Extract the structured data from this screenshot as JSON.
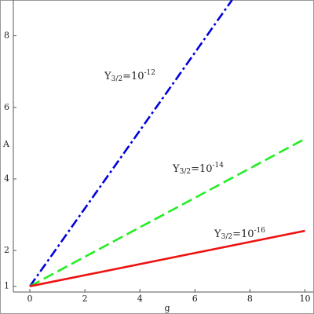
{
  "chart_data": {
    "type": "line",
    "xlabel": "g",
    "ylabel": "A",
    "xlim": [
      -0.6,
      10.3
    ],
    "ylim": [
      0.84,
      9
    ],
    "xticks": [
      0,
      2,
      4,
      6,
      8,
      10
    ],
    "yticks": [
      1,
      2,
      4,
      6,
      8
    ],
    "series": [
      {
        "color": "#0000dd",
        "style": "dashdot",
        "x": [
          0,
          7.35
        ],
        "values": [
          1,
          9
        ]
      },
      {
        "color": "#22ee22",
        "style": "dashed",
        "x": [
          0,
          10
        ],
        "values": [
          1,
          5.12
        ]
      },
      {
        "color": "#ee1111",
        "style": "solid",
        "x": [
          0,
          10
        ],
        "values": [
          1,
          2.55
        ]
      }
    ],
    "annotations": [
      {
        "base": "Y",
        "sub": "3/2",
        "mid": "=10",
        "sup": "-12"
      },
      {
        "base": "Y",
        "sub": "3/2",
        "mid": "=10",
        "sup": "-14"
      },
      {
        "base": "Y",
        "sub": "3/2",
        "mid": "=10",
        "sup": "-16"
      }
    ]
  }
}
